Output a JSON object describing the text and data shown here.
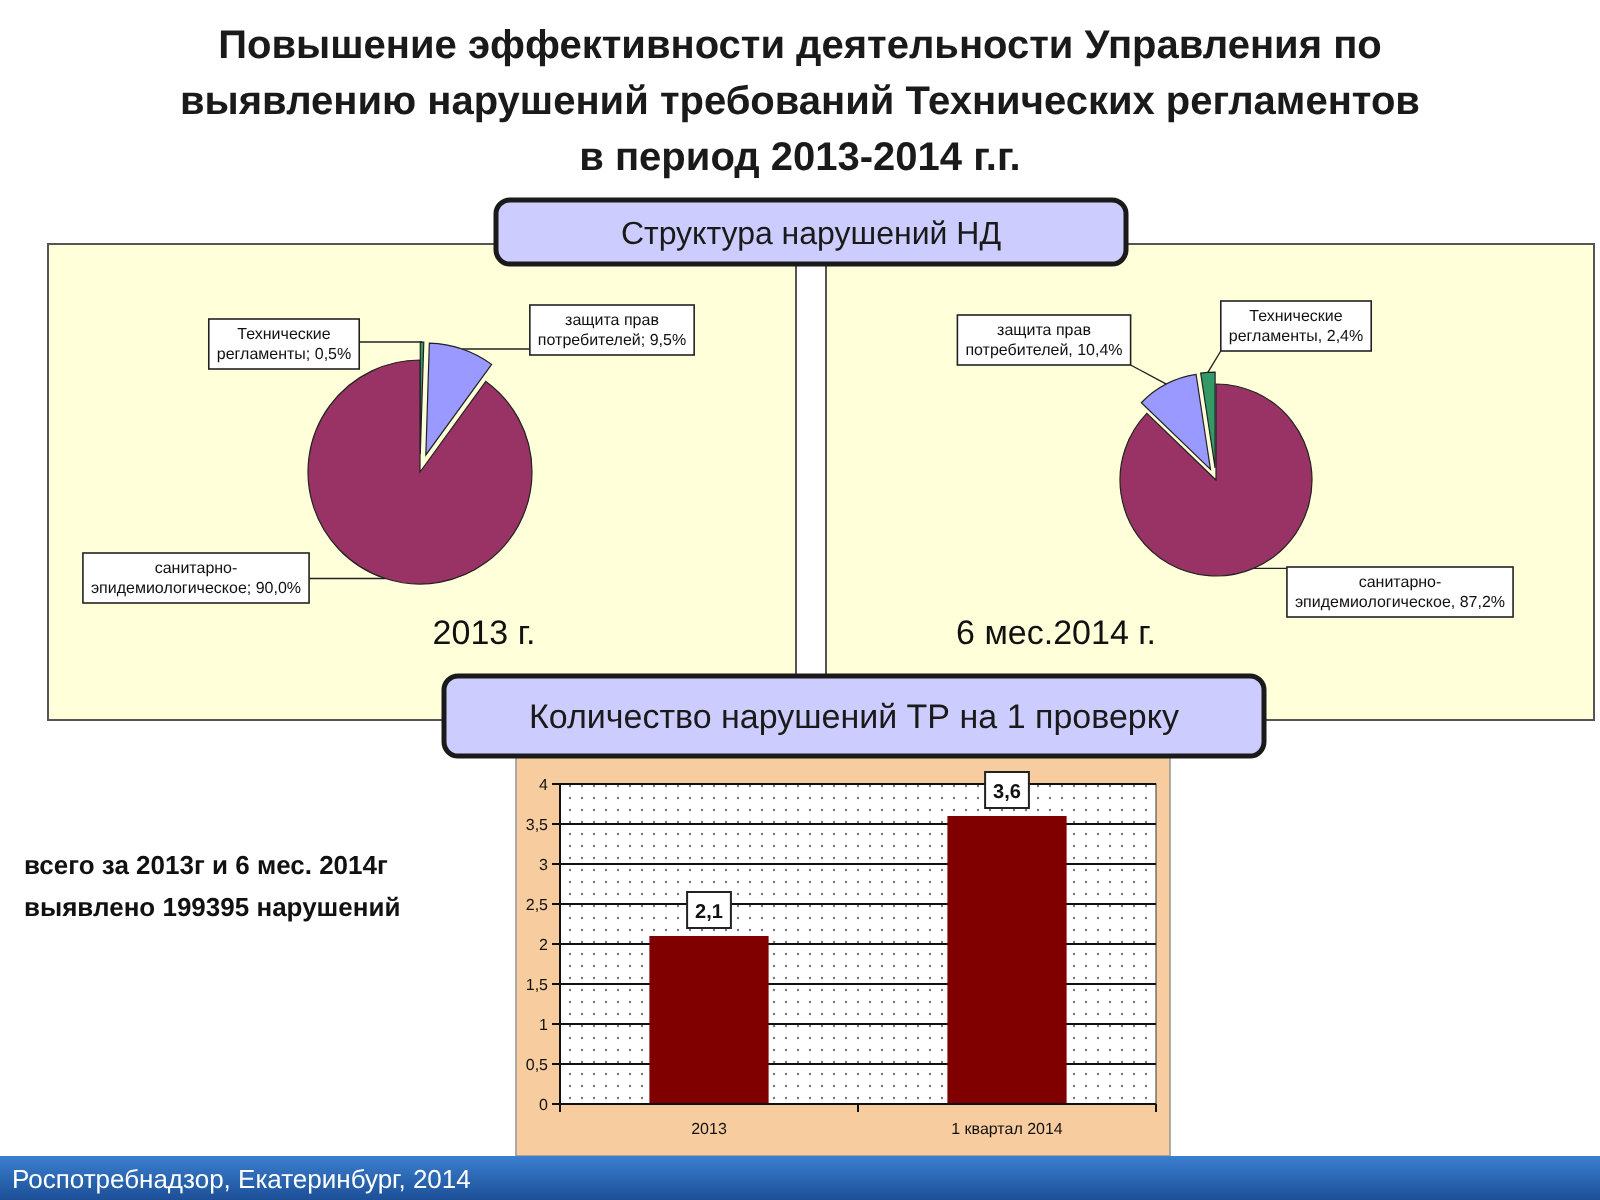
{
  "chart_data": [
    {
      "type": "pie",
      "title": "Повышение эффективности деятельности Управления по\nвыявлению нарушений требований Технических регламентов\nв период 2013-2014 г.г.",
      "subtitle": "Структура нарушений НД",
      "categories": [
        "Технические регламенты",
        "защита прав потребителей",
        "санитарно-эпидемиологическое"
      ],
      "values": [
        0.5,
        9.5,
        90.0
      ],
      "colors": [
        "#339966",
        "#9999ff",
        "#993366"
      ],
      "value_labels": [
        "0,5%",
        "9,5%",
        "90,0%"
      ],
      "annotations": [
        "2013 г."
      ]
    },
    {
      "type": "pie",
      "categories": [
        "санитарно-эпидемиологическое",
        "защита прав потребителей",
        "Технические регламенты"
      ],
      "values": [
        87.2,
        10.4,
        2.4
      ],
      "colors": [
        "#993366",
        "#9999ff",
        "#339966"
      ],
      "value_labels": [
        "87,2%",
        "10,4%",
        "2,4%"
      ],
      "annotations": [
        "6 мес.2014 г."
      ]
    },
    {
      "type": "bar",
      "title": "Количество нарушений ТР на 1 проверку",
      "categories": [
        "2013",
        "1 квартал 2014"
      ],
      "values": [
        2.1,
        3.6
      ],
      "color": "#800000",
      "value_labels": [
        "2,1",
        "3,6"
      ],
      "ylim": [
        0,
        4
      ],
      "yticks": [
        0,
        {
          "value": 0.5,
          "label": "0,5"
        },
        1,
        {
          "value": 1.5,
          "label": "1,5"
        },
        2,
        {
          "value": 2.5,
          "label": "2,5"
        },
        3,
        {
          "value": 3.5,
          "label": "3,5"
        },
        4
      ],
      "grid": "y",
      "annotations": [
        "всего за 2013г и 6 мес. 2014г\nвыявлено 199395 нарушений",
        "Роспотребнадзор, Екатеринбург, 2014"
      ]
    }
  ]
}
